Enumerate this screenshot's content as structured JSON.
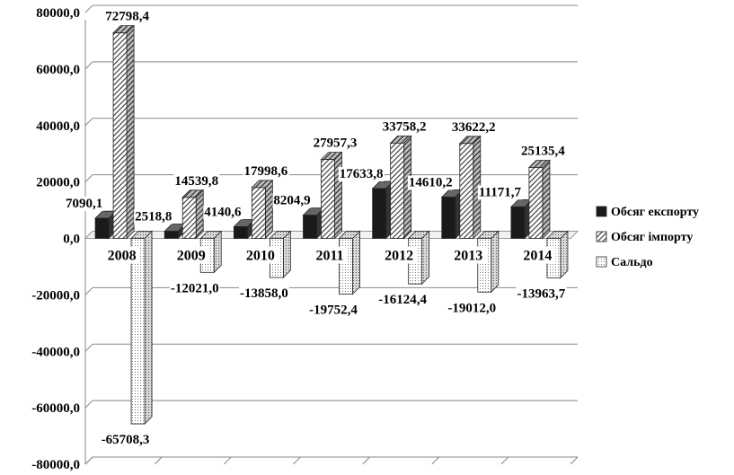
{
  "chart_data": {
    "type": "bar",
    "categories": [
      "2008",
      "2009",
      "2010",
      "2011",
      "2012",
      "2013",
      "2014"
    ],
    "series": [
      {
        "name": "Обсяг експорту",
        "values": [
          7090.1,
          2518.8,
          4140.6,
          8204.9,
          17633.8,
          14610.2,
          11171.7
        ],
        "labels": [
          "7090,1",
          "2518,8",
          "4140,6",
          "8204,9",
          "17633,8",
          "14610,2",
          "11171,7"
        ],
        "color": "#1a1a1a",
        "pattern": "solid"
      },
      {
        "name": "Обсяг імпорту",
        "values": [
          72798.4,
          14539.8,
          17998.6,
          27957.3,
          33758.2,
          33622.2,
          25135.4
        ],
        "labels": [
          "72798,4",
          "14539,8",
          "17998,6",
          "27957,3",
          "33758,2",
          "33622,2",
          "25135,4"
        ],
        "color": "#555555",
        "pattern": "diagonal"
      },
      {
        "name": "Сальдо",
        "values": [
          -65708.3,
          -12021.0,
          -13858.0,
          -19752.4,
          -16124.4,
          -19012.0,
          -13963.7
        ],
        "labels": [
          "-65708,3",
          "-12021,0",
          "-13858,0",
          "-19752,4",
          "-16124,4",
          "-19012,0",
          "-13963,7"
        ],
        "color": "#ffffff",
        "pattern": "dotted"
      }
    ],
    "ylim": [
      -80000,
      80000
    ],
    "yticks": [
      80000,
      60000,
      40000,
      20000,
      0,
      -20000,
      -40000,
      -60000,
      -80000
    ],
    "ytick_labels": [
      "80000,0",
      "60000,0",
      "40000,0",
      "20000,0",
      "0,0",
      "-20000,0",
      "-40000,0",
      "-60000,0",
      "-80000,0"
    ],
    "grid": true,
    "legend_position": "right",
    "three_d": true,
    "title": "",
    "xlabel": "",
    "ylabel": ""
  }
}
